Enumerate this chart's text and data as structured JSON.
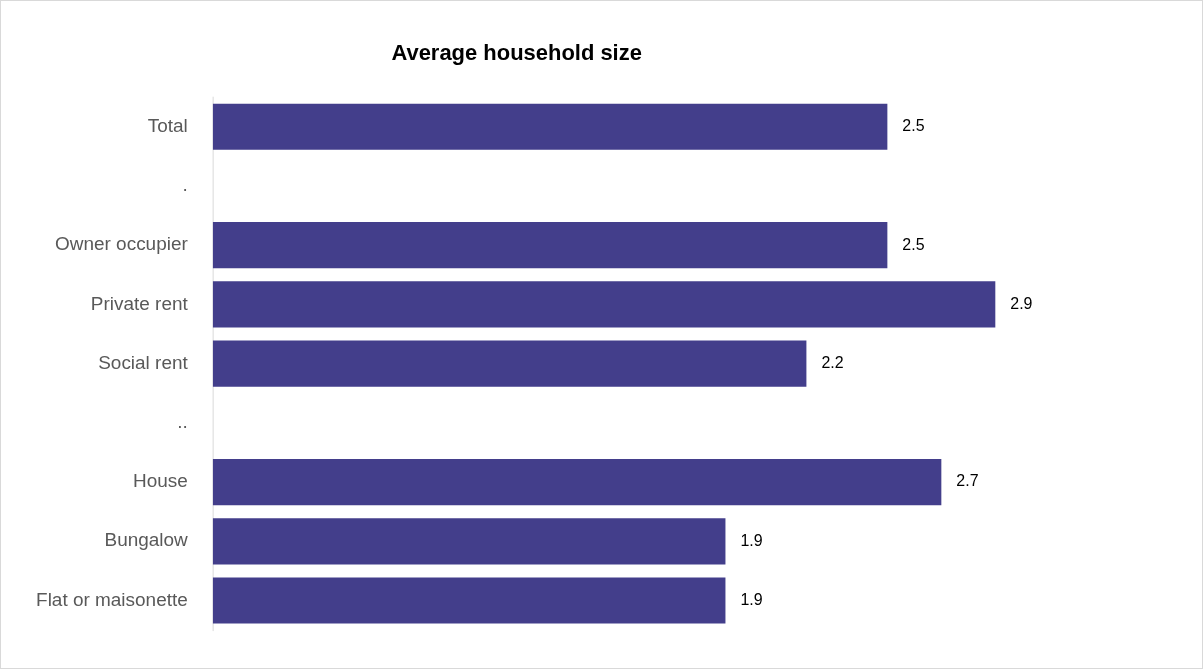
{
  "chart_data": {
    "type": "bar",
    "orientation": "horizontal",
    "title": "Average household size",
    "categories": [
      "Total",
      ".",
      "Owner occupier",
      "Private rent",
      "Social rent",
      "..",
      "House",
      "Bungalow",
      "Flat or maisonette"
    ],
    "values": [
      2.5,
      null,
      2.5,
      2.9,
      2.2,
      null,
      2.7,
      1.9,
      1.9
    ],
    "color": "#433e8b",
    "data_labels": true,
    "grid": false,
    "legend": false,
    "tick_labels": "y"
  }
}
